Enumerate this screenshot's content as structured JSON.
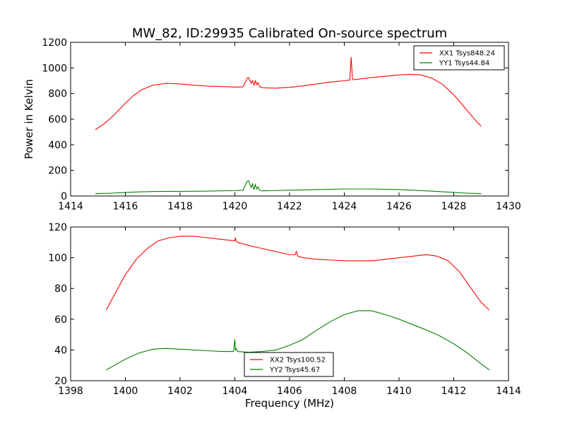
{
  "figure": {
    "title": "MW_82, ID:29935 Calibrated On-source spectrum"
  },
  "chart_data": [
    {
      "type": "line",
      "title": "MW_82, ID:29935 Calibrated On-source spectrum",
      "xlabel": "",
      "ylabel": "Power in Kelvin",
      "xlim": [
        1414,
        1430
      ],
      "ylim": [
        0,
        1200
      ],
      "xticks": [
        1414,
        1416,
        1418,
        1420,
        1422,
        1424,
        1426,
        1428,
        1430
      ],
      "yticks": [
        0,
        200,
        400,
        600,
        800,
        1000,
        1200
      ],
      "grid": false,
      "legend_position": "top-right",
      "series": [
        {
          "name": "XX1 Tsys848.24",
          "color": "#ff0000",
          "x": [
            1414.9,
            1415.2,
            1415.5,
            1415.8,
            1416.0,
            1416.3,
            1416.6,
            1417.0,
            1417.5,
            1418.0,
            1418.5,
            1419.0,
            1419.5,
            1420.0,
            1420.3,
            1420.45,
            1420.5,
            1420.6,
            1420.65,
            1420.7,
            1420.75,
            1420.8,
            1420.85,
            1420.9,
            1421.0,
            1421.5,
            1422.0,
            1422.5,
            1423.0,
            1423.5,
            1424.0,
            1424.2,
            1424.25,
            1424.3,
            1424.35,
            1424.5,
            1425.0,
            1425.5,
            1426.0,
            1426.4,
            1426.8,
            1427.2,
            1427.6,
            1428.0,
            1428.4,
            1428.8,
            1429.0
          ],
          "y": [
            518,
            560,
            615,
            680,
            725,
            785,
            830,
            865,
            880,
            875,
            865,
            858,
            855,
            850,
            852,
            920,
            925,
            880,
            900,
            865,
            900,
            870,
            885,
            855,
            845,
            842,
            848,
            860,
            875,
            890,
            900,
            905,
            1085,
            910,
            908,
            912,
            925,
            935,
            945,
            950,
            945,
            920,
            870,
            790,
            690,
            590,
            545
          ]
        },
        {
          "name": "YY1 Tsys44.84",
          "color": "#008000",
          "x": [
            1414.9,
            1415.5,
            1416.0,
            1416.5,
            1417.0,
            1417.5,
            1418.0,
            1419.0,
            1420.0,
            1420.3,
            1420.45,
            1420.5,
            1420.6,
            1420.65,
            1420.7,
            1420.75,
            1420.8,
            1420.85,
            1420.9,
            1421.0,
            1422.0,
            1423.0,
            1424.0,
            1425.0,
            1426.0,
            1427.0,
            1428.0,
            1428.5,
            1429.0
          ],
          "y": [
            18,
            22,
            28,
            32,
            35,
            36,
            36,
            38,
            42,
            45,
            115,
            120,
            65,
            95,
            50,
            90,
            55,
            70,
            45,
            40,
            45,
            50,
            55,
            55,
            50,
            40,
            28,
            22,
            18
          ]
        }
      ]
    },
    {
      "type": "line",
      "title": "",
      "xlabel": "Frequency (MHz)",
      "ylabel": "",
      "xlim": [
        1398,
        1414
      ],
      "ylim": [
        20,
        120
      ],
      "xticks": [
        1398,
        1400,
        1402,
        1404,
        1406,
        1408,
        1410,
        1412,
        1414
      ],
      "yticks": [
        20,
        40,
        60,
        80,
        100,
        120
      ],
      "grid": false,
      "legend_position": "bottom-center",
      "series": [
        {
          "name": "XX2 Tsys100.52",
          "color": "#ff0000",
          "x": [
            1399.3,
            1399.6,
            1400.0,
            1400.4,
            1400.8,
            1401.2,
            1401.6,
            1402.0,
            1402.5,
            1403.0,
            1403.5,
            1404.0,
            1404.02,
            1404.05,
            1404.1,
            1404.5,
            1405.0,
            1405.5,
            1406.0,
            1406.2,
            1406.25,
            1406.3,
            1406.5,
            1407.0,
            1407.5,
            1408.0,
            1408.5,
            1409.0,
            1409.5,
            1410.0,
            1410.5,
            1411.0,
            1411.4,
            1411.8,
            1412.2,
            1412.6,
            1413.0,
            1413.3
          ],
          "y": [
            66,
            76,
            89,
            99,
            106,
            111,
            113,
            114,
            114,
            113,
            112,
            111,
            113,
            111,
            110,
            108,
            106,
            104,
            102,
            102,
            104,
            101,
            100,
            99,
            98.5,
            98,
            98,
            98,
            99,
            100,
            101,
            102,
            101,
            98,
            91,
            81,
            71,
            66
          ]
        },
        {
          "name": "YY2 Tsys45.67",
          "color": "#008000",
          "x": [
            1399.3,
            1399.6,
            1400.0,
            1400.5,
            1401.0,
            1401.5,
            1402.0,
            1402.5,
            1403.0,
            1403.5,
            1403.95,
            1404.0,
            1404.02,
            1404.05,
            1404.1,
            1404.5,
            1405.0,
            1405.5,
            1406.0,
            1406.5,
            1407.0,
            1407.5,
            1408.0,
            1408.5,
            1409.0,
            1409.5,
            1410.0,
            1410.5,
            1411.0,
            1411.5,
            1412.0,
            1412.5,
            1413.0,
            1413.3
          ],
          "y": [
            27,
            30,
            34,
            38,
            40.5,
            41,
            40.5,
            40,
            39.5,
            39,
            39,
            47,
            40,
            41,
            39,
            38.5,
            39,
            40,
            43,
            47,
            53,
            58.5,
            63,
            65.5,
            65.5,
            63,
            60,
            56.5,
            53,
            49,
            44,
            38,
            31,
            27
          ]
        }
      ]
    }
  ]
}
